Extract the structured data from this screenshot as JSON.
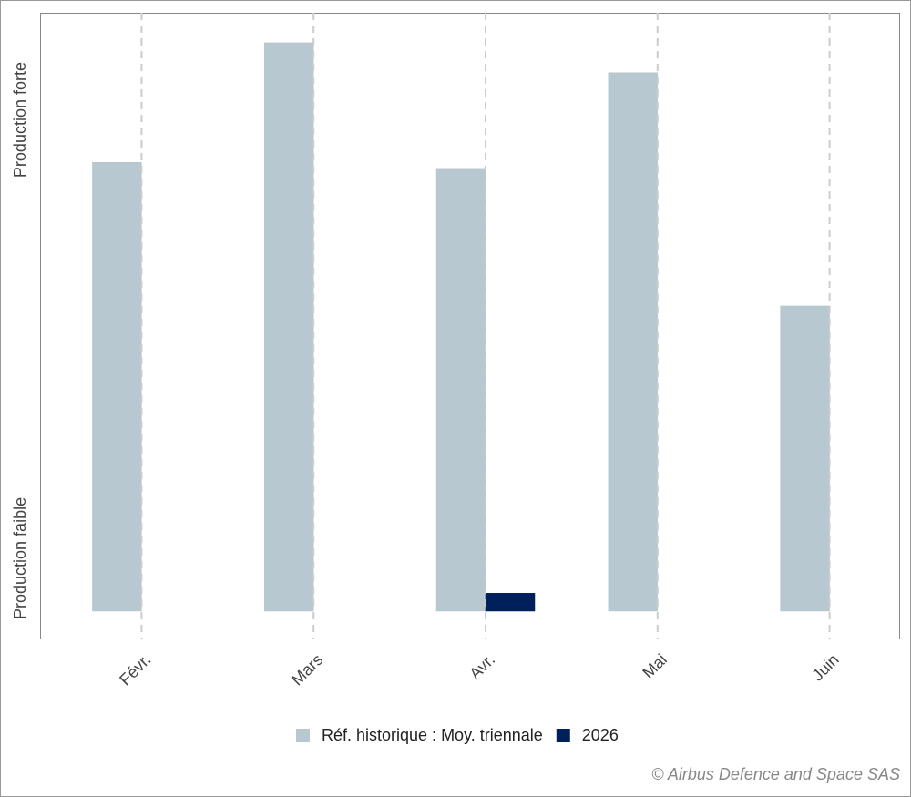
{
  "chart_data": {
    "type": "bar",
    "categories": [
      "Févr.",
      "Mars",
      "Avr.",
      "Mai",
      "Juin"
    ],
    "series": [
      {
        "name": "Réf. historique : Moy. triennale",
        "color": "#b8c8d0",
        "values": [
          75,
          95,
          74,
          90,
          51
        ]
      },
      {
        "name": "2026",
        "color": "#00205b",
        "values": [
          0,
          0,
          3,
          0,
          0
        ]
      }
    ],
    "ylim": [
      0,
      100
    ],
    "y_axis_labels": [
      "Production faible",
      "Production forte"
    ],
    "grid": true,
    "legend": "bottom",
    "credit": "© Airbus Defence and Space SAS"
  }
}
